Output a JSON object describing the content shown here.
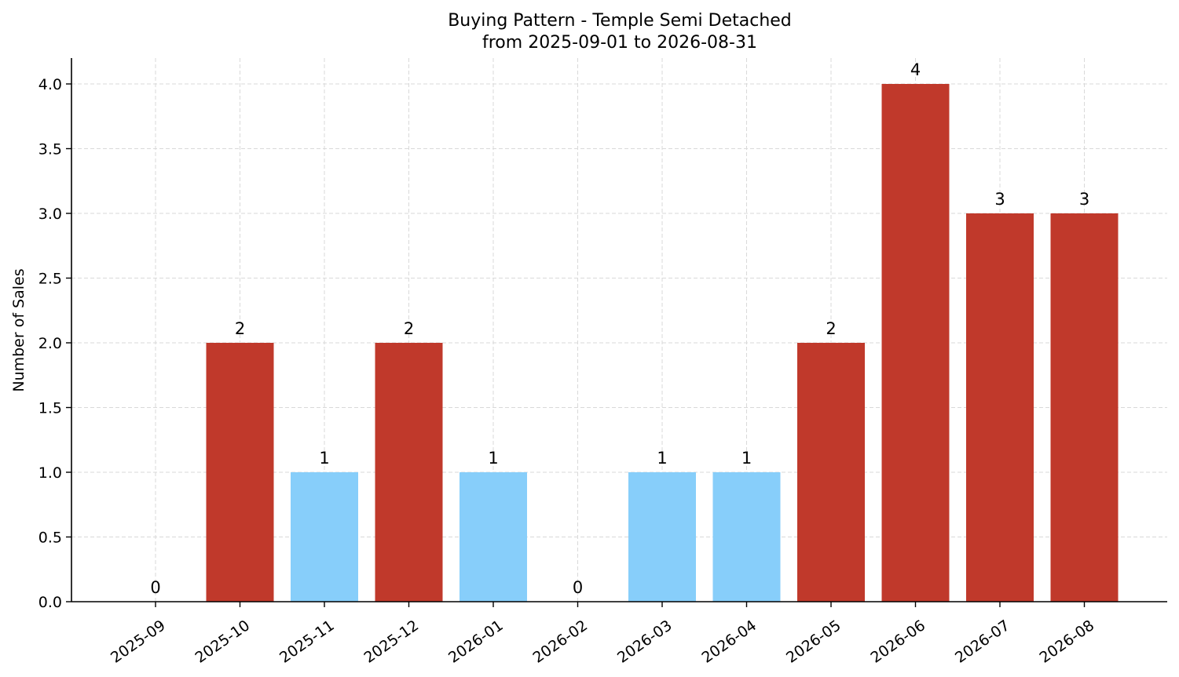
{
  "chart_data": {
    "type": "bar",
    "title_line1": "Buying Pattern - Temple Semi Detached",
    "title_line2": "from 2025-09-01 to 2026-08-31",
    "xlabel": "",
    "ylabel": "Number of Sales",
    "categories": [
      "2025-09",
      "2025-10",
      "2025-11",
      "2025-12",
      "2026-01",
      "2026-02",
      "2026-03",
      "2026-04",
      "2026-05",
      "2026-06",
      "2026-07",
      "2026-08"
    ],
    "values": [
      0,
      2,
      1,
      2,
      1,
      0,
      1,
      1,
      2,
      4,
      3,
      3
    ],
    "data_labels": [
      "0",
      "2",
      "1",
      "2",
      "1",
      "0",
      "1",
      "1",
      "2",
      "4",
      "3",
      "3"
    ],
    "bar_colors": [
      "#c0392b",
      "#c0392b",
      "#87cefa",
      "#c0392b",
      "#87cefa",
      "#c0392b",
      "#87cefa",
      "#87cefa",
      "#c0392b",
      "#c0392b",
      "#c0392b",
      "#c0392b"
    ],
    "ylim": [
      0,
      4.2
    ],
    "yticks": [
      0.0,
      0.5,
      1.0,
      1.5,
      2.0,
      2.5,
      3.0,
      3.5,
      4.0
    ],
    "ytick_labels": [
      "0.0",
      "0.5",
      "1.0",
      "1.5",
      "2.0",
      "2.5",
      "3.0",
      "3.5",
      "4.0"
    ],
    "grid": true,
    "legend": "none"
  }
}
